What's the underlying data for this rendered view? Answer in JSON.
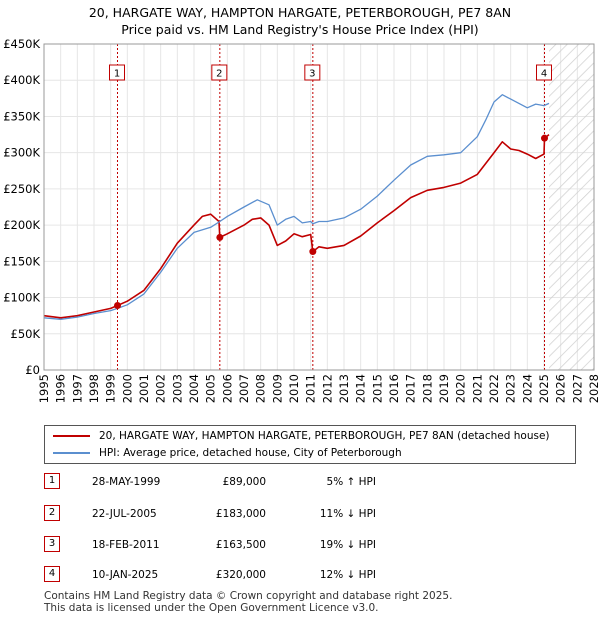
{
  "title": {
    "line1": "20, HARGATE WAY, HAMPTON HARGATE, PETERBOROUGH, PE7 8AN",
    "line2": "Price paid vs. HM Land Registry's House Price Index (HPI)"
  },
  "colors": {
    "property": "#c00000",
    "hpi": "#5b8fcf",
    "future_hatch": "#dddddd",
    "grid": "#e6e6e6"
  },
  "chart_data": {
    "type": "line",
    "x_range": [
      1995,
      2028
    ],
    "ylim": [
      0,
      450000
    ],
    "y_ticks": [
      0,
      50000,
      100000,
      150000,
      200000,
      250000,
      300000,
      350000,
      400000,
      450000
    ],
    "y_tick_labels": [
      "£0",
      "£50K",
      "£100K",
      "£150K",
      "£200K",
      "£250K",
      "£300K",
      "£350K",
      "£400K",
      "£450K"
    ],
    "x_ticks": [
      1995,
      1996,
      1997,
      1998,
      1999,
      2000,
      2001,
      2002,
      2003,
      2004,
      2005,
      2006,
      2007,
      2008,
      2009,
      2010,
      2011,
      2012,
      2013,
      2014,
      2015,
      2016,
      2017,
      2018,
      2019,
      2020,
      2021,
      2022,
      2023,
      2024,
      2025,
      2026,
      2027,
      2028
    ],
    "x_tick_labels": [
      "1995",
      "1996",
      "1997",
      "1998",
      "1999",
      "2000",
      "2001",
      "2002",
      "2003",
      "2004",
      "2005",
      "2006",
      "2007",
      "2008",
      "2009",
      "2010",
      "2011",
      "2012",
      "2013",
      "2014",
      "2015",
      "2016",
      "2017",
      "2018",
      "2019",
      "2020",
      "2021",
      "2022",
      "2023",
      "2024",
      "2025",
      "2026",
      "2027",
      "2028"
    ],
    "future_start": 2025.3,
    "series": [
      {
        "name": "20, HARGATE WAY, HAMPTON HARGATE, PETERBOROUGH, PE7 8AN (detached house)",
        "color": "#c00000",
        "x": [
          1995.0,
          1996.0,
          1997.0,
          1998.0,
          1999.0,
          1999.41,
          2000.0,
          2001.0,
          2002.0,
          2003.0,
          2004.0,
          2004.5,
          2005.0,
          2005.5,
          2005.55,
          2006.0,
          2007.0,
          2007.5,
          2008.0,
          2008.5,
          2009.0,
          2009.5,
          2010.0,
          2010.5,
          2011.0,
          2011.13,
          2011.5,
          2012.0,
          2013.0,
          2014.0,
          2015.0,
          2016.0,
          2017.0,
          2018.0,
          2019.0,
          2020.0,
          2021.0,
          2022.0,
          2022.5,
          2023.0,
          2023.5,
          2024.0,
          2024.5,
          2025.0,
          2025.03,
          2025.3
        ],
        "y": [
          75000,
          72000,
          75000,
          80000,
          85000,
          89000,
          95000,
          110000,
          140000,
          175000,
          200000,
          212000,
          215000,
          205000,
          183000,
          188000,
          200000,
          208000,
          210000,
          200000,
          172000,
          178000,
          188000,
          184000,
          187000,
          163500,
          170000,
          168000,
          172000,
          185000,
          203000,
          220000,
          238000,
          248000,
          252000,
          258000,
          270000,
          300000,
          315000,
          305000,
          303000,
          298000,
          292000,
          298000,
          320000,
          325000
        ]
      },
      {
        "name": "HPI: Average price, detached house, City of Peterborough",
        "color": "#5b8fcf",
        "x": [
          1995.0,
          1996.0,
          1997.0,
          1998.0,
          1999.0,
          1999.41,
          2000.0,
          2001.0,
          2002.0,
          2003.0,
          2004.0,
          2005.0,
          2005.55,
          2006.0,
          2007.0,
          2007.8,
          2008.5,
          2009.0,
          2009.5,
          2010.0,
          2010.5,
          2011.0,
          2011.13,
          2011.5,
          2012.0,
          2013.0,
          2014.0,
          2015.0,
          2016.0,
          2017.0,
          2018.0,
          2019.0,
          2020.0,
          2021.0,
          2021.5,
          2022.0,
          2022.5,
          2023.0,
          2023.5,
          2024.0,
          2024.5,
          2025.0,
          2025.3
        ],
        "y": [
          72000,
          70000,
          73000,
          78000,
          82000,
          85000,
          90000,
          105000,
          135000,
          168000,
          190000,
          197000,
          205000,
          212000,
          225000,
          235000,
          228000,
          200000,
          208000,
          212000,
          203000,
          205000,
          202000,
          205000,
          205000,
          210000,
          222000,
          240000,
          262000,
          283000,
          295000,
          297000,
          300000,
          322000,
          345000,
          370000,
          380000,
          374000,
          368000,
          362000,
          367000,
          365000,
          368000
        ]
      }
    ],
    "sales": [
      {
        "num": "1",
        "x": 1999.41,
        "price": 89000
      },
      {
        "num": "2",
        "x": 2005.55,
        "price": 183000
      },
      {
        "num": "3",
        "x": 2011.13,
        "price": 163500
      },
      {
        "num": "4",
        "x": 2025.03,
        "price": 320000
      }
    ]
  },
  "legend": {
    "property_label": "20, HARGATE WAY, HAMPTON HARGATE, PETERBOROUGH, PE7 8AN (detached house)",
    "hpi_label": "HPI: Average price, detached house, City of Peterborough"
  },
  "sales_table": [
    {
      "num": "1",
      "date": "28-MAY-1999",
      "price": "£89,000",
      "hpi": "5% ↑ HPI"
    },
    {
      "num": "2",
      "date": "22-JUL-2005",
      "price": "£183,000",
      "hpi": "11% ↓ HPI"
    },
    {
      "num": "3",
      "date": "18-FEB-2011",
      "price": "£163,500",
      "hpi": "19% ↓ HPI"
    },
    {
      "num": "4",
      "date": "10-JAN-2025",
      "price": "£320,000",
      "hpi": "12% ↓ HPI"
    }
  ],
  "footer": {
    "line1": "Contains HM Land Registry data © Crown copyright and database right 2025.",
    "line2": "This data is licensed under the Open Government Licence v3.0."
  }
}
